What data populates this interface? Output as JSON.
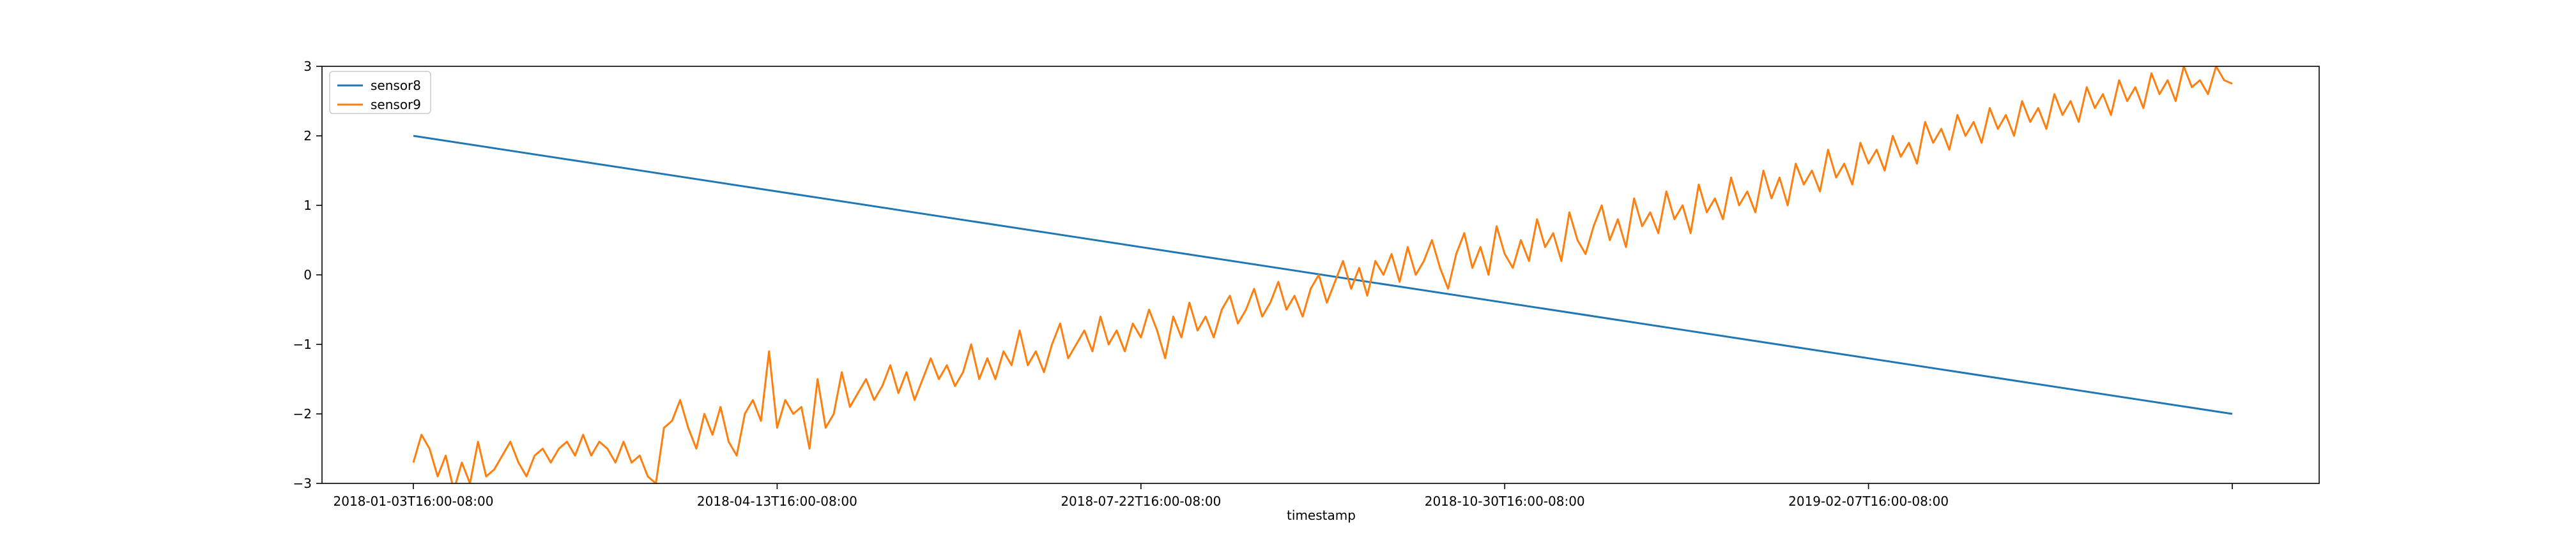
{
  "chart_data": {
    "type": "line",
    "title": "",
    "xlabel": "timestamp",
    "ylabel": "",
    "x_range": [
      "2018-01-03T16:00-08:00",
      "2019-05-07T16:00-08:00"
    ],
    "xticks": [
      "2018-01-03T16:00-08:00",
      "2018-04-13T16:00-08:00",
      "2018-07-22T16:00-08:00",
      "2018-10-30T16:00-08:00",
      "2019-02-07T16:00-08:00",
      ""
    ],
    "ylim": [
      -3,
      3
    ],
    "yticks": [
      -3,
      -2,
      -1,
      0,
      1,
      2,
      3
    ],
    "ytick_labels": [
      "−3",
      "−2",
      "−1",
      "0",
      "1",
      "2",
      "3"
    ],
    "grid": false,
    "legend_position": "upper-left",
    "series": [
      {
        "name": "sensor8",
        "color": "#1f77b4",
        "x": [
          "2018-01-03T16:00-08:00",
          "2019-05-07T16:00-08:00"
        ],
        "y": [
          2.0,
          -2.0
        ]
      },
      {
        "name": "sensor9",
        "color": "#ff7f0e",
        "x_start": "2018-01-03T16:00-08:00",
        "x_end": "2019-05-07T16:00-08:00",
        "y": [
          -2.7,
          -2.3,
          -2.5,
          -2.9,
          -2.6,
          -3.1,
          -2.7,
          -3.0,
          -2.4,
          -2.9,
          -2.8,
          -2.6,
          -2.4,
          -2.7,
          -2.9,
          -2.6,
          -2.5,
          -2.7,
          -2.5,
          -2.4,
          -2.6,
          -2.3,
          -2.6,
          -2.4,
          -2.5,
          -2.7,
          -2.4,
          -2.7,
          -2.6,
          -2.9,
          -3.0,
          -2.2,
          -2.1,
          -1.8,
          -2.2,
          -2.5,
          -2.0,
          -2.3,
          -1.9,
          -2.4,
          -2.6,
          -2.0,
          -1.8,
          -2.1,
          -1.1,
          -2.2,
          -1.8,
          -2.0,
          -1.9,
          -2.5,
          -1.5,
          -2.2,
          -2.0,
          -1.4,
          -1.9,
          -1.7,
          -1.5,
          -1.8,
          -1.6,
          -1.3,
          -1.7,
          -1.4,
          -1.8,
          -1.5,
          -1.2,
          -1.5,
          -1.3,
          -1.6,
          -1.4,
          -1.0,
          -1.5,
          -1.2,
          -1.5,
          -1.1,
          -1.3,
          -0.8,
          -1.3,
          -1.1,
          -1.4,
          -1.0,
          -0.7,
          -1.2,
          -1.0,
          -0.8,
          -1.1,
          -0.6,
          -1.0,
          -0.8,
          -1.1,
          -0.7,
          -0.9,
          -0.5,
          -0.8,
          -1.2,
          -0.6,
          -0.9,
          -0.4,
          -0.8,
          -0.6,
          -0.9,
          -0.5,
          -0.3,
          -0.7,
          -0.5,
          -0.2,
          -0.6,
          -0.4,
          -0.1,
          -0.5,
          -0.3,
          -0.6,
          -0.2,
          0.0,
          -0.4,
          -0.1,
          0.2,
          -0.2,
          0.1,
          -0.3,
          0.2,
          0.0,
          0.3,
          -0.1,
          0.4,
          0.0,
          0.2,
          0.5,
          0.1,
          -0.2,
          0.3,
          0.6,
          0.1,
          0.4,
          0.0,
          0.7,
          0.3,
          0.1,
          0.5,
          0.2,
          0.8,
          0.4,
          0.6,
          0.2,
          0.9,
          0.5,
          0.3,
          0.7,
          1.0,
          0.5,
          0.8,
          0.4,
          1.1,
          0.7,
          0.9,
          0.6,
          1.2,
          0.8,
          1.0,
          0.6,
          1.3,
          0.9,
          1.1,
          0.8,
          1.4,
          1.0,
          1.2,
          0.9,
          1.5,
          1.1,
          1.4,
          1.0,
          1.6,
          1.3,
          1.5,
          1.2,
          1.8,
          1.4,
          1.6,
          1.3,
          1.9,
          1.6,
          1.8,
          1.5,
          2.0,
          1.7,
          1.9,
          1.6,
          2.2,
          1.9,
          2.1,
          1.8,
          2.3,
          2.0,
          2.2,
          1.9,
          2.4,
          2.1,
          2.3,
          2.0,
          2.5,
          2.2,
          2.4,
          2.1,
          2.6,
          2.3,
          2.5,
          2.2,
          2.7,
          2.4,
          2.6,
          2.3,
          2.8,
          2.5,
          2.7,
          2.4,
          2.9,
          2.6,
          2.8,
          2.5,
          3.0,
          2.7,
          2.8,
          2.6,
          3.0,
          2.8,
          2.75
        ]
      }
    ]
  }
}
